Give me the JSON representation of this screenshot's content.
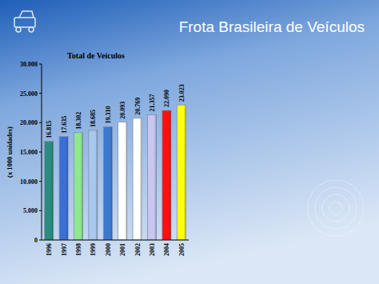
{
  "header": {
    "title": "Frota Brasileira de Veículos"
  },
  "chart_data": {
    "type": "bar",
    "title": "Total de Veículos",
    "y_label": "(x 1000 unidades)",
    "categories": [
      "1996",
      "1997",
      "1998",
      "1999",
      "2000",
      "2001",
      "2002",
      "2003",
      "2004",
      "2005"
    ],
    "values": [
      16815,
      17635,
      18302,
      18685,
      19310,
      20093,
      20769,
      21357,
      22090,
      23023
    ],
    "value_labels": [
      "16.815",
      "17.635",
      "18.302",
      "18.685",
      "19.310",
      "20.093",
      "20.769",
      "21.357",
      "22.090",
      "23.023"
    ],
    "colors": [
      "#2a8c7c",
      "#3b6fd6",
      "#8fe88f",
      "#a9c8ee",
      "#3c7ad2",
      "#ffffff",
      "#ffffff",
      "#c9c6f0",
      "#ff1010",
      "#ffff10"
    ],
    "ylim": [
      0,
      30000
    ],
    "yticks": [
      0,
      {
        "value": 5000,
        "label": "5.000"
      },
      {
        "value": 10000,
        "label": "10.000"
      },
      {
        "value": 15000,
        "label": "15.000"
      },
      {
        "value": 20000,
        "label": "20.000"
      },
      {
        "value": 25000,
        "label": "25.000"
      },
      {
        "value": 30000,
        "label": "30.000"
      }
    ],
    "data_labels": true,
    "grid": false
  }
}
